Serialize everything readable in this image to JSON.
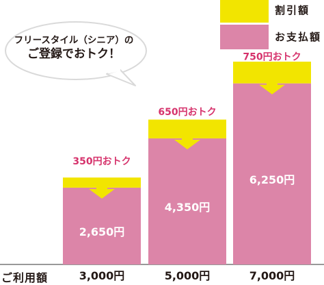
{
  "colors": {
    "discount": "#f2e500",
    "payment": "#dc85a8",
    "saving_text": "#d6336c",
    "amount_text": "#ffffff",
    "arrow": "#f2e500"
  },
  "bubble": {
    "line1": "フリースタイル（シニア）の",
    "line2": "ご登録でおトク！"
  },
  "legend": {
    "discount": "割引額",
    "payment": "お支払額"
  },
  "row_label": "ご利用額",
  "chart_data": {
    "type": "bar",
    "stacked": true,
    "categories": [
      "3,000円",
      "5,000円",
      "7,000円"
    ],
    "series": [
      {
        "name": "お支払額",
        "values": [
          2650,
          4350,
          6250
        ],
        "labels": [
          "2,650円",
          "4,350円",
          "6,250円"
        ]
      },
      {
        "name": "割引額",
        "values": [
          350,
          650,
          750
        ],
        "labels": [
          "350円おトク",
          "650円おトク",
          "750円おトク"
        ]
      }
    ],
    "totals": [
      3000,
      5000,
      7000
    ],
    "legend_position": "top-right"
  }
}
